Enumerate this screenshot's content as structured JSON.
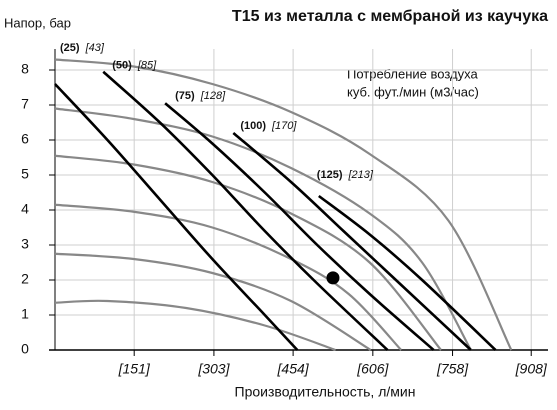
{
  "chart_data": {
    "type": "line",
    "title": "T15 из металла с мембраной из каучука",
    "y_label": "Напор, бар",
    "x_label": "Производительность, л/мин",
    "legend_title": [
      "Потребление воздуха",
      "куб. фут./мин (м3/час)"
    ],
    "xlim": [
      0,
      940
    ],
    "ylim": [
      0,
      8.6
    ],
    "xticks": [
      {
        "value": 151,
        "label": "[151]"
      },
      {
        "value": 303,
        "label": "[303]"
      },
      {
        "value": 454,
        "label": "[454]"
      },
      {
        "value": 606,
        "label": "[606]"
      },
      {
        "value": 758,
        "label": "[758]"
      },
      {
        "value": 908,
        "label": "[908]"
      }
    ],
    "yticks": [
      0,
      1,
      2,
      3,
      4,
      5,
      6,
      7,
      8
    ],
    "grid": true,
    "series": [
      {
        "color": "#888888",
        "x": [
          0,
          150,
          300,
          450,
          600,
          750,
          870
        ],
        "values": [
          8.3,
          8.1,
          7.6,
          6.8,
          5.6,
          3.7,
          0
        ]
      },
      {
        "color": "#888888",
        "x": [
          0,
          150,
          300,
          450,
          600,
          700,
          793
        ],
        "values": [
          6.9,
          6.6,
          6.1,
          5.2,
          3.9,
          2.5,
          0
        ]
      },
      {
        "color": "#888888",
        "x": [
          0,
          150,
          300,
          450,
          600,
          736
        ],
        "values": [
          5.55,
          5.3,
          4.8,
          3.9,
          2.5,
          0
        ]
      },
      {
        "color": "#888888",
        "x": [
          0,
          150,
          300,
          450,
          560,
          660
        ],
        "values": [
          4.15,
          3.95,
          3.5,
          2.6,
          1.6,
          0
        ]
      },
      {
        "color": "#888888",
        "x": [
          0,
          150,
          300,
          450,
          602
        ],
        "values": [
          2.75,
          2.6,
          2.2,
          1.4,
          0
        ]
      },
      {
        "color": "#888888",
        "x": [
          0,
          100,
          250,
          400,
          535
        ],
        "values": [
          1.35,
          1.4,
          1.2,
          0.7,
          0
        ]
      },
      {
        "name": "(25)",
        "label": "[43]",
        "color": "#000000",
        "x": [
          0,
          100,
          200,
          300,
          400,
          462
        ],
        "values": [
          7.6,
          6.0,
          4.3,
          2.6,
          1.0,
          0
        ]
      },
      {
        "name": "(50)",
        "label": "[85]",
        "color": "#000000",
        "x": [
          92,
          200,
          300,
          400,
          500,
          634
        ],
        "values": [
          7.95,
          6.5,
          5.0,
          3.4,
          1.9,
          0
        ]
      },
      {
        "name": "(75)",
        "label": "[128]",
        "color": "#000000",
        "x": [
          210,
          300,
          400,
          500,
          600,
          722
        ],
        "values": [
          7.05,
          5.9,
          4.5,
          3.0,
          1.6,
          0
        ]
      },
      {
        "name": "(100)",
        "label": "[170]",
        "color": "#000000",
        "x": [
          340,
          450,
          550,
          650,
          793
        ],
        "values": [
          6.2,
          4.8,
          3.4,
          2.0,
          0
        ]
      },
      {
        "name": "(125)",
        "label": "[213]",
        "color": "#000000",
        "x": [
          503,
          600,
          700,
          840
        ],
        "values": [
          4.4,
          3.3,
          2.0,
          0
        ]
      }
    ],
    "point": {
      "x": 530,
      "y": 2.06,
      "color": "#000000"
    }
  }
}
